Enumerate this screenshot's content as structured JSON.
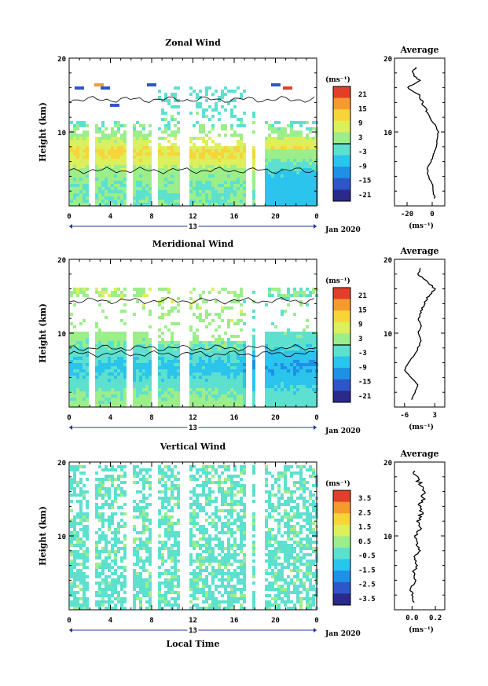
{
  "chart_data": [
    {
      "type": "heatmap",
      "title": "Zonal Wind",
      "ylabel": "Height (km)",
      "unit": "(ms⁻¹)",
      "x_ticks": [
        "0",
        "4",
        "8",
        "12",
        "16",
        "20",
        "0"
      ],
      "date_mark": "13",
      "date_label": "Jan 2020",
      "ylim": [
        0,
        20
      ],
      "y_ticks": [
        "20",
        "10"
      ],
      "colorbar_ticks": [
        "21",
        "15",
        "9",
        "3",
        "-3",
        "-9",
        "-15",
        "-21"
      ],
      "profile": {
        "title": "Average",
        "x_ticks": [
          "-20",
          "0"
        ],
        "xlabel": "(ms⁻¹)",
        "y_ticks": [
          "20",
          "10"
        ],
        "heights": [
          1,
          2,
          3,
          4,
          5,
          6,
          7,
          8,
          9,
          10,
          11,
          12,
          13,
          14,
          15,
          16,
          17,
          18,
          19
        ],
        "values": [
          2,
          1,
          0,
          -3,
          -4,
          -1,
          1,
          3,
          4,
          5,
          2,
          -2,
          -5,
          -8,
          -10,
          -20,
          -10,
          -16,
          -12
        ]
      }
    },
    {
      "type": "heatmap",
      "title": "Meridional Wind",
      "ylabel": "Height (km)",
      "unit": "(ms⁻¹)",
      "x_ticks": [
        "0",
        "4",
        "8",
        "12",
        "16",
        "20",
        "0"
      ],
      "date_mark": "13",
      "date_label": "Jan 2020",
      "ylim": [
        0,
        20
      ],
      "y_ticks": [
        "20",
        "10"
      ],
      "colorbar_ticks": [
        "21",
        "15",
        "9",
        "3",
        "-3",
        "-9",
        "-15",
        "-21"
      ],
      "profile": {
        "title": "Average",
        "x_ticks": [
          "-6",
          "3"
        ],
        "xlabel": "(ms⁻¹)",
        "y_ticks": [
          "20",
          "10"
        ],
        "heights": [
          1,
          2,
          3,
          4,
          5,
          6,
          7,
          8,
          9,
          10,
          11,
          12,
          13,
          14,
          15,
          16,
          17,
          18,
          19
        ],
        "values": [
          -4,
          -3,
          -2,
          -4,
          -6,
          -5,
          -3,
          -2,
          -1,
          -2,
          -1,
          -2,
          -1,
          0,
          1,
          3,
          1,
          -2,
          -1
        ]
      }
    },
    {
      "type": "heatmap",
      "title": "Vertical Wind",
      "ylabel": "Height (km)",
      "xlabel": "Local Time",
      "unit": "(ms⁻¹)",
      "x_ticks": [
        "0",
        "4",
        "8",
        "12",
        "16",
        "20",
        "0"
      ],
      "date_mark": "13",
      "date_label": "Jan 2020",
      "ylim": [
        0,
        20
      ],
      "y_ticks": [
        "20",
        "10"
      ],
      "colorbar_ticks": [
        "3.5",
        "2.5",
        "1.5",
        "0.5",
        "-0.5",
        "-1.5",
        "-2.5",
        "-3.5"
      ],
      "profile": {
        "title": "Average",
        "x_ticks": [
          "0.0",
          "0.2"
        ],
        "xlabel": "(ms⁻¹)",
        "y_ticks": [
          "20",
          "10"
        ],
        "heights": [
          1,
          2,
          3,
          4,
          5,
          6,
          7,
          8,
          9,
          10,
          11,
          12,
          13,
          14,
          15,
          16,
          17,
          18,
          19
        ],
        "values": [
          0.02,
          0.0,
          -0.01,
          0.03,
          0.01,
          0.05,
          0.02,
          0.06,
          0.04,
          0.03,
          0.07,
          0.05,
          0.08,
          0.06,
          0.09,
          0.11,
          0.07,
          0.05,
          0.02
        ]
      }
    }
  ]
}
